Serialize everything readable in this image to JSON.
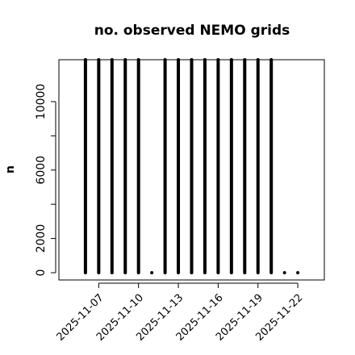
{
  "chart_data": {
    "type": "histogram-lines",
    "title": "no. observed NEMO grids",
    "ylabel": "n",
    "x": [
      "2025-11-06",
      "2025-11-07",
      "2025-11-08",
      "2025-11-09",
      "2025-11-10",
      "2025-11-11",
      "2025-11-12",
      "2025-11-13",
      "2025-11-14",
      "2025-11-15",
      "2025-11-16",
      "2025-11-17",
      "2025-11-18",
      "2025-11-19",
      "2025-11-20",
      "2025-11-21",
      "2025-11-22"
    ],
    "values": [
      12450,
      12450,
      12450,
      12450,
      12450,
      0,
      12450,
      12450,
      12450,
      12450,
      12450,
      12450,
      12450,
      12450,
      12450,
      0,
      0
    ],
    "color": "#000000",
    "xlim": [
      "2025-11-04",
      "2025-11-24"
    ],
    "xticks": [
      "2025-11-07",
      "2025-11-10",
      "2025-11-13",
      "2025-11-16",
      "2025-11-19",
      "2025-11-22"
    ],
    "ylim": [
      -425,
      12450
    ],
    "yticks": [
      0,
      2000,
      {
        "value": 4000,
        "label": null
      },
      6000,
      {
        "value": 8000,
        "label": null
      },
      10000
    ]
  }
}
